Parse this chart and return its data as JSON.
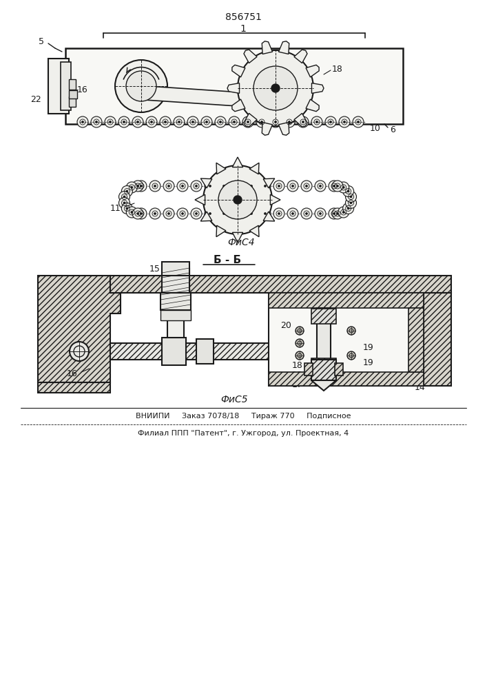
{
  "patent_number": "856751",
  "fig4_label": "ФиС4",
  "fig5_label": "ФиС5",
  "section_label": "Б - Б",
  "footer_line1": "ВНИИПИ     Заказ 7078/18     Тираж 770     Подписное",
  "footer_line2": "Филиал ППП \"Патент\", г. Ужгород, ул. Проектная, 4",
  "bg_color": "#ffffff",
  "line_color": "#1a1a1a"
}
